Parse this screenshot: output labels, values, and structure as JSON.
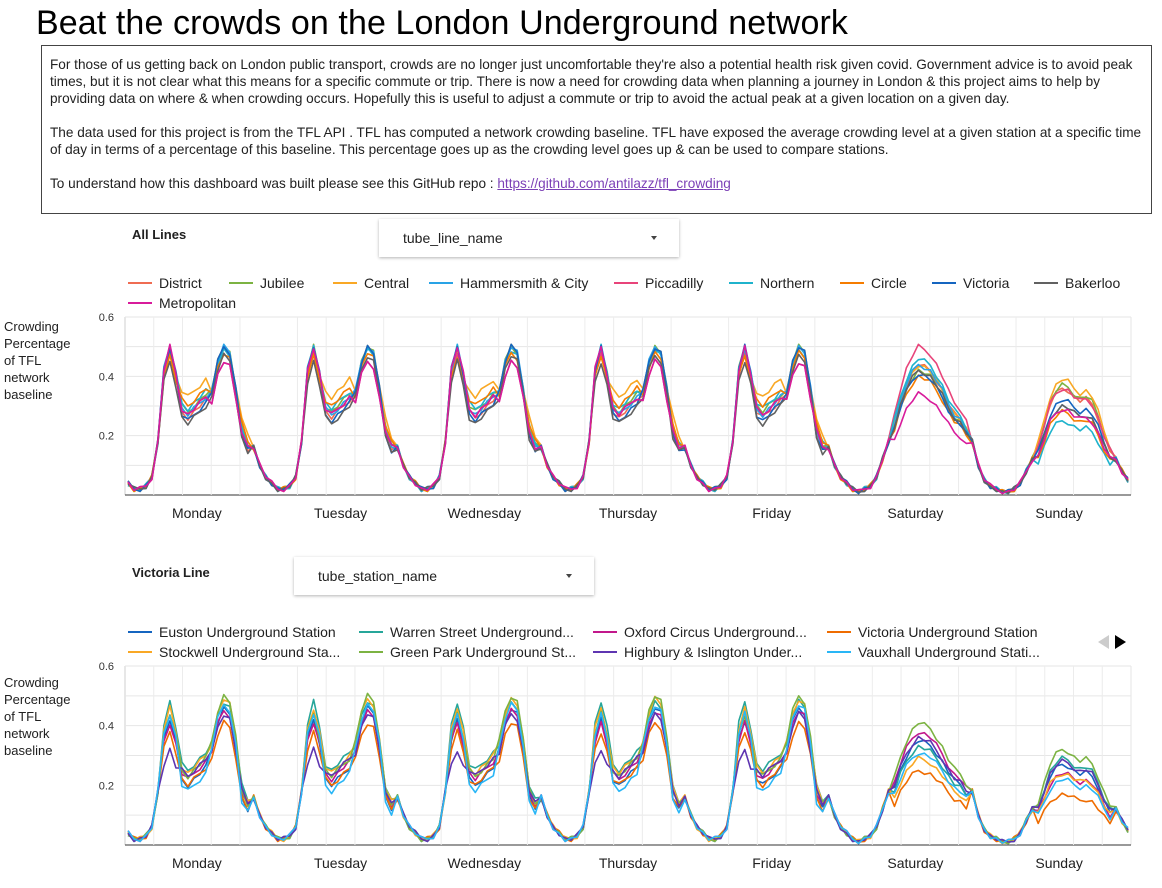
{
  "page": {
    "title": "Beat the crowds on the London Underground network",
    "intro_p1": "For those of us getting back on London public transport, crowds are no longer just uncomfortable they're also a potential health risk given covid. Government advice is to avoid peak times, but it is not clear what this means for a specific commute or trip. There is now a need for crowding data when planning a journey in London & this project aims to help by providing data on where & when crowding occurs. Hopefully this is useful to adjust a commute or trip to avoid the actual peak at a given location on a given day.",
    "intro_p2": "The data used for this project is from the  TFL API . TFL has computed a network crowding baseline. TFL have exposed the average crowding level at a given station at a specific time of day in terms of a percentage of this baseline. This percentage goes up as the crowding level goes up & can be used to compare stations.",
    "intro_p3_prefix": "To understand how this dashboard was built please see this GitHub repo : ",
    "intro_link": "https://github.com/antilazz/tfl_crowding"
  },
  "section1": {
    "label": "All Lines",
    "dropdown": "tube_line_name"
  },
  "section2": {
    "label": "Victoria Line",
    "dropdown": "tube_station_name"
  },
  "chart_data": [
    {
      "type": "line",
      "title": "",
      "ylabel": "Crowding Percentage of TFL network baseline",
      "xlabel": "",
      "ylim": [
        0,
        0.6
      ],
      "yticks": [
        "0.6",
        "0.4",
        "0.2"
      ],
      "categories": [
        "Monday",
        "Tuesday",
        "Wednesday",
        "Thursday",
        "Friday",
        "Saturday",
        "Sunday"
      ],
      "grid": true,
      "legend_position": "top",
      "series": [
        {
          "name": "District",
          "color": "#ef6c52",
          "weekday": {
            "am": 0.49,
            "mid": 0.26,
            "pm": 0.49
          },
          "sat": 0.44,
          "sun": 0.36
        },
        {
          "name": "Jubilee",
          "color": "#7cb342",
          "weekday": {
            "am": 0.5,
            "mid": 0.28,
            "pm": 0.5
          },
          "sat": 0.42,
          "sun": 0.37
        },
        {
          "name": "Central",
          "color": "#f9a825",
          "weekday": {
            "am": 0.48,
            "mid": 0.33,
            "pm": 0.5
          },
          "sat": 0.44,
          "sun": 0.39
        },
        {
          "name": "Hammersmith & City",
          "color": "#29a3e6",
          "weekday": {
            "am": 0.5,
            "mid": 0.27,
            "pm": 0.5
          },
          "sat": 0.44,
          "sun": 0.3
        },
        {
          "name": "Piccadilly",
          "color": "#e8447a",
          "weekday": {
            "am": 0.48,
            "mid": 0.27,
            "pm": 0.45
          },
          "sat": 0.5,
          "sun": 0.36
        },
        {
          "name": "Northern",
          "color": "#1fb3cc",
          "weekday": {
            "am": 0.5,
            "mid": 0.29,
            "pm": 0.49
          },
          "sat": 0.46,
          "sun": 0.25
        },
        {
          "name": "Circle",
          "color": "#f57c00",
          "weekday": {
            "am": 0.47,
            "mid": 0.3,
            "pm": 0.48
          },
          "sat": 0.4,
          "sun": 0.28
        },
        {
          "name": "Victoria",
          "color": "#1565c0",
          "weekday": {
            "am": 0.5,
            "mid": 0.25,
            "pm": 0.5
          },
          "sat": 0.41,
          "sun": 0.32
        },
        {
          "name": "Bakerloo",
          "color": "#616161",
          "weekday": {
            "am": 0.45,
            "mid": 0.24,
            "pm": 0.47
          },
          "sat": 0.42,
          "sun": 0.3
        },
        {
          "name": "Metropolitan",
          "color": "#d81b9b",
          "weekday": {
            "am": 0.5,
            "mid": 0.27,
            "pm": 0.45
          },
          "sat": 0.34,
          "sun": 0.29
        }
      ]
    },
    {
      "type": "line",
      "title": "",
      "ylabel": "Crowding Percentage of TFL network baseline",
      "xlabel": "",
      "ylim": [
        0,
        0.6
      ],
      "yticks": [
        "0.6",
        "0.4",
        "0.2"
      ],
      "categories": [
        "Monday",
        "Tuesday",
        "Wednesday",
        "Thursday",
        "Friday",
        "Saturday",
        "Sunday"
      ],
      "grid": true,
      "legend_position": "top",
      "series": [
        {
          "name": "Euston Underground Station",
          "color": "#1565c0",
          "weekday": {
            "am": 0.42,
            "mid": 0.2,
            "pm": 0.46
          },
          "sat": 0.35,
          "sun": 0.27
        },
        {
          "name": "Warren Street Underground...",
          "color": "#26a69a",
          "weekday": {
            "am": 0.48,
            "mid": 0.25,
            "pm": 0.48
          },
          "sat": 0.33,
          "sun": 0.29
        },
        {
          "name": "Oxford Circus Underground...",
          "color": "#c2188b",
          "weekday": {
            "am": 0.41,
            "mid": 0.22,
            "pm": 0.45
          },
          "sat": 0.38,
          "sun": 0.24
        },
        {
          "name": "Victoria Underground Station",
          "color": "#ef6c00",
          "weekday": {
            "am": 0.38,
            "mid": 0.2,
            "pm": 0.41
          },
          "sat": 0.25,
          "sun": 0.17
        },
        {
          "name": "Stockwell Underground Sta...",
          "color": "#f9a825",
          "weekday": {
            "am": 0.46,
            "mid": 0.24,
            "pm": 0.49
          },
          "sat": 0.29,
          "sun": 0.24
        },
        {
          "name": "Green Park Underground St...",
          "color": "#7cb342",
          "weekday": {
            "am": 0.44,
            "mid": 0.23,
            "pm": 0.5
          },
          "sat": 0.41,
          "sun": 0.32
        },
        {
          "name": "Highbury & Islington Under...",
          "color": "#5e35b1",
          "weekday": {
            "am": 0.32,
            "mid": 0.23,
            "pm": 0.44
          },
          "sat": 0.36,
          "sun": 0.28
        },
        {
          "name": "Vauxhall Underground Stati...",
          "color": "#29b6f6",
          "weekday": {
            "am": 0.44,
            "mid": 0.18,
            "pm": 0.47
          },
          "sat": 0.31,
          "sun": 0.22
        }
      ]
    }
  ]
}
